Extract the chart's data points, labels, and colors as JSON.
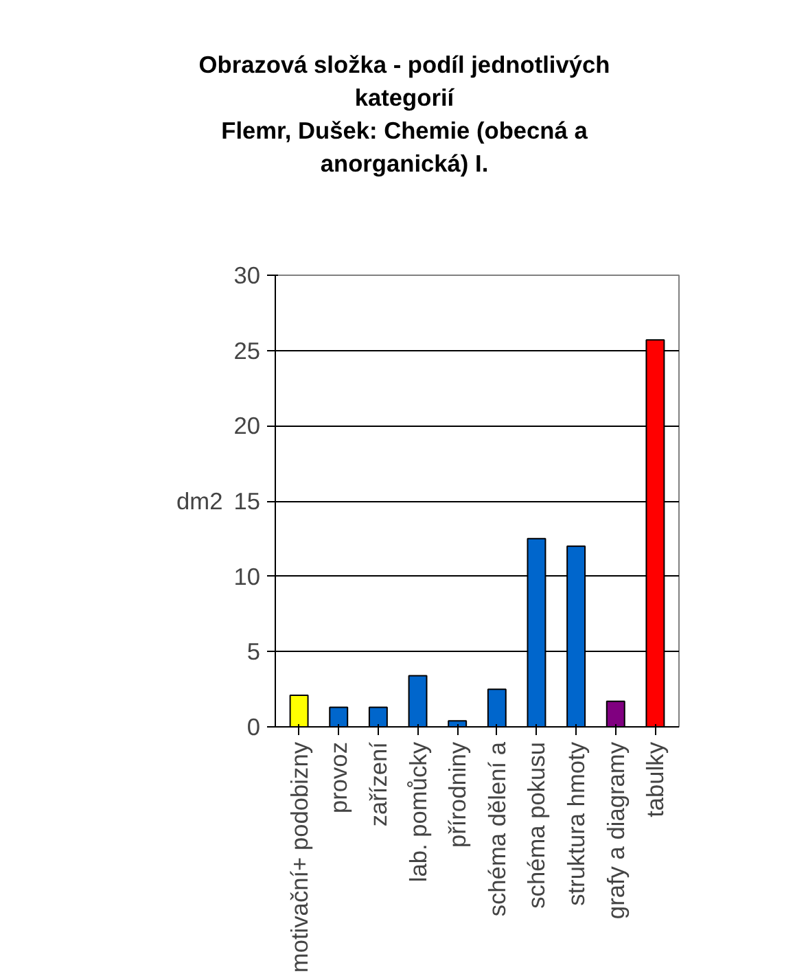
{
  "chart_data": {
    "type": "bar",
    "title": "Obrazová složka - podíl jednotlivých\nkategorií\n Flemr, Dušek: Chemie (obecná a\nanorganická) I.",
    "ylabel": "dm2",
    "categories": [
      "motivační+ podobizny",
      "provoz",
      "zařízení",
      "lab. pomůcky",
      "přírodniny",
      "schéma dělení a",
      "schéma pokusu",
      "struktura hmoty",
      "grafy a diagramy",
      "tabulky"
    ],
    "values": [
      2.1,
      1.3,
      1.3,
      3.4,
      0.4,
      2.5,
      12.5,
      12.0,
      1.7,
      25.7
    ],
    "colors": [
      "#ffff00",
      "#0066cc",
      "#0066cc",
      "#0066cc",
      "#0066cc",
      "#0066cc",
      "#0066cc",
      "#0066cc",
      "#800080",
      "#ff0000"
    ],
    "ylim": [
      0,
      30
    ],
    "yticks": [
      0,
      5,
      10,
      15,
      20,
      25,
      30
    ],
    "grid": "y"
  }
}
